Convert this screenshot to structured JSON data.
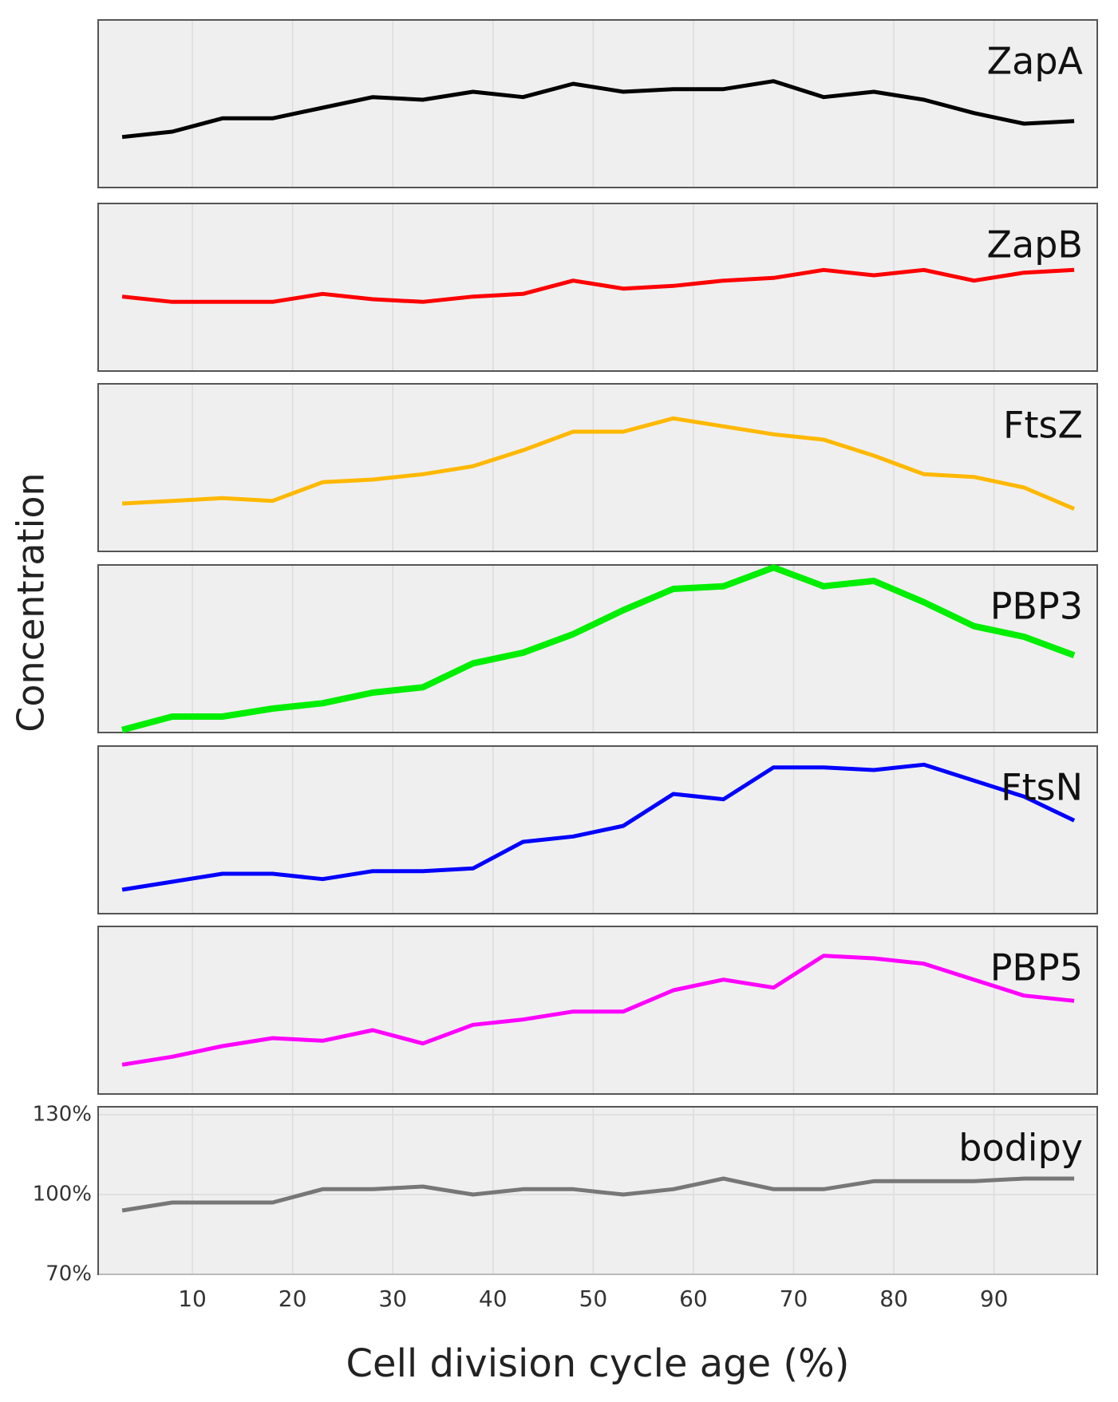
{
  "chart_data": [
    {
      "type": "line",
      "title": "ZapA",
      "color": "#000000",
      "x": [
        3,
        8,
        13,
        18,
        23,
        28,
        33,
        38,
        43,
        48,
        53,
        58,
        63,
        68,
        73,
        78,
        83,
        88,
        93,
        98
      ],
      "values": [
        89,
        91,
        96,
        96,
        100,
        104,
        103,
        106,
        104,
        109,
        106,
        107,
        107,
        110,
        104,
        106,
        103,
        98,
        94,
        95
      ],
      "xlim": [
        0.6,
        100.3
      ],
      "ylim": [
        70,
        133
      ]
    },
    {
      "type": "line",
      "title": "ZapB",
      "color": "#ff0000",
      "x": [
        3,
        8,
        13,
        18,
        23,
        28,
        33,
        38,
        43,
        48,
        53,
        58,
        63,
        68,
        73,
        78,
        83,
        88,
        93,
        98
      ],
      "values": [
        98,
        96,
        96,
        96,
        99,
        97,
        96,
        98,
        99,
        104,
        101,
        102,
        104,
        105,
        108,
        106,
        108,
        104,
        107,
        108
      ],
      "xlim": [
        0.6,
        100.3
      ],
      "ylim": [
        70,
        133
      ]
    },
    {
      "type": "line",
      "title": "FtsZ",
      "color": "#ffb800",
      "x": [
        3,
        8,
        13,
        18,
        23,
        28,
        33,
        38,
        43,
        48,
        53,
        58,
        63,
        68,
        73,
        78,
        83,
        88,
        93,
        98
      ],
      "values": [
        88,
        89,
        90,
        89,
        96,
        97,
        99,
        102,
        108,
        115,
        115,
        120,
        117,
        114,
        112,
        106,
        99,
        98,
        94,
        86
      ],
      "xlim": [
        0.6,
        100.3
      ],
      "ylim": [
        70,
        133
      ]
    },
    {
      "type": "line",
      "title": "PBP3",
      "color": "#00ee00",
      "x": [
        3,
        8,
        13,
        18,
        23,
        28,
        33,
        38,
        43,
        48,
        53,
        58,
        63,
        68,
        73,
        78,
        83,
        88,
        93,
        98
      ],
      "values": [
        71,
        76,
        76,
        79,
        81,
        85,
        87,
        96,
        100,
        107,
        116,
        124,
        125,
        132,
        125,
        127,
        119,
        110,
        106,
        99
      ],
      "xlim": [
        0.6,
        100.3
      ],
      "ylim": [
        70,
        133
      ]
    },
    {
      "type": "line",
      "title": "FtsN",
      "color": "#0000ff",
      "x": [
        3,
        8,
        13,
        18,
        23,
        28,
        33,
        38,
        43,
        48,
        53,
        58,
        63,
        68,
        73,
        78,
        83,
        88,
        93,
        98
      ],
      "values": [
        79,
        82,
        85,
        85,
        83,
        86,
        86,
        87,
        97,
        99,
        103,
        115,
        113,
        125,
        125,
        124,
        126,
        120,
        114,
        105
      ],
      "xlim": [
        0.6,
        100.3
      ],
      "ylim": [
        70,
        133
      ]
    },
    {
      "type": "line",
      "title": "PBP5",
      "color": "#ff00ff",
      "x": [
        3,
        8,
        13,
        18,
        23,
        28,
        33,
        38,
        43,
        48,
        53,
        58,
        63,
        68,
        73,
        78,
        83,
        88,
        93,
        98
      ],
      "values": [
        81,
        84,
        88,
        91,
        90,
        94,
        89,
        96,
        98,
        101,
        101,
        109,
        113,
        110,
        122,
        121,
        119,
        113,
        107,
        105
      ],
      "xlim": [
        0.6,
        100.3
      ],
      "ylim": [
        70,
        133
      ]
    },
    {
      "type": "line",
      "title": "bodipy",
      "color": "#777777",
      "x": [
        3,
        8,
        13,
        18,
        23,
        28,
        33,
        38,
        43,
        48,
        53,
        58,
        63,
        68,
        73,
        78,
        83,
        88,
        93,
        98
      ],
      "values": [
        94,
        97,
        97,
        97,
        102,
        102,
        103,
        100,
        102,
        102,
        100,
        102,
        106,
        102,
        102,
        105,
        105,
        105,
        106,
        106
      ],
      "xlim": [
        0.6,
        100.3
      ],
      "ylim": [
        70,
        133
      ],
      "yticks": [
        {
          "value": 70,
          "label": "70%"
        },
        {
          "value": 100,
          "label": "100%"
        },
        {
          "value": 130,
          "label": "130%"
        }
      ],
      "xticks": [
        10,
        20,
        30,
        40,
        50,
        60,
        70,
        80,
        90
      ],
      "xlabel": "Cell division cycle age (%)",
      "ylabel": "Concentration",
      "grid": true
    }
  ]
}
